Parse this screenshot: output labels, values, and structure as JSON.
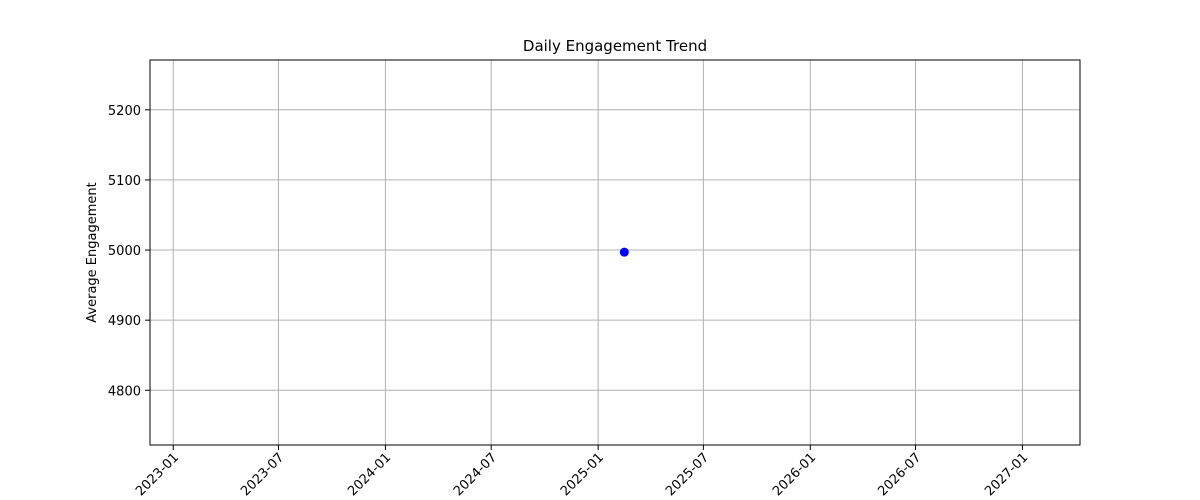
{
  "chart_data": {
    "type": "scatter",
    "title": "Daily Engagement Trend",
    "xlabel": "",
    "ylabel": "Average Engagement",
    "x_axis_type": "date",
    "x_ticks": [
      "2023-01",
      "2023-07",
      "2024-01",
      "2024-07",
      "2025-01",
      "2025-07",
      "2026-01",
      "2026-07",
      "2027-01"
    ],
    "xlim": [
      "2022-11-22",
      "2027-04-10"
    ],
    "y_ticks": [
      4800,
      4900,
      5000,
      5100,
      5200
    ],
    "ylim": [
      4722,
      5271
    ],
    "grid": true,
    "marker_color": "#0000ff",
    "series": [
      {
        "x": [
          "2025-02-15"
        ],
        "y": [
          4997
        ]
      }
    ]
  }
}
